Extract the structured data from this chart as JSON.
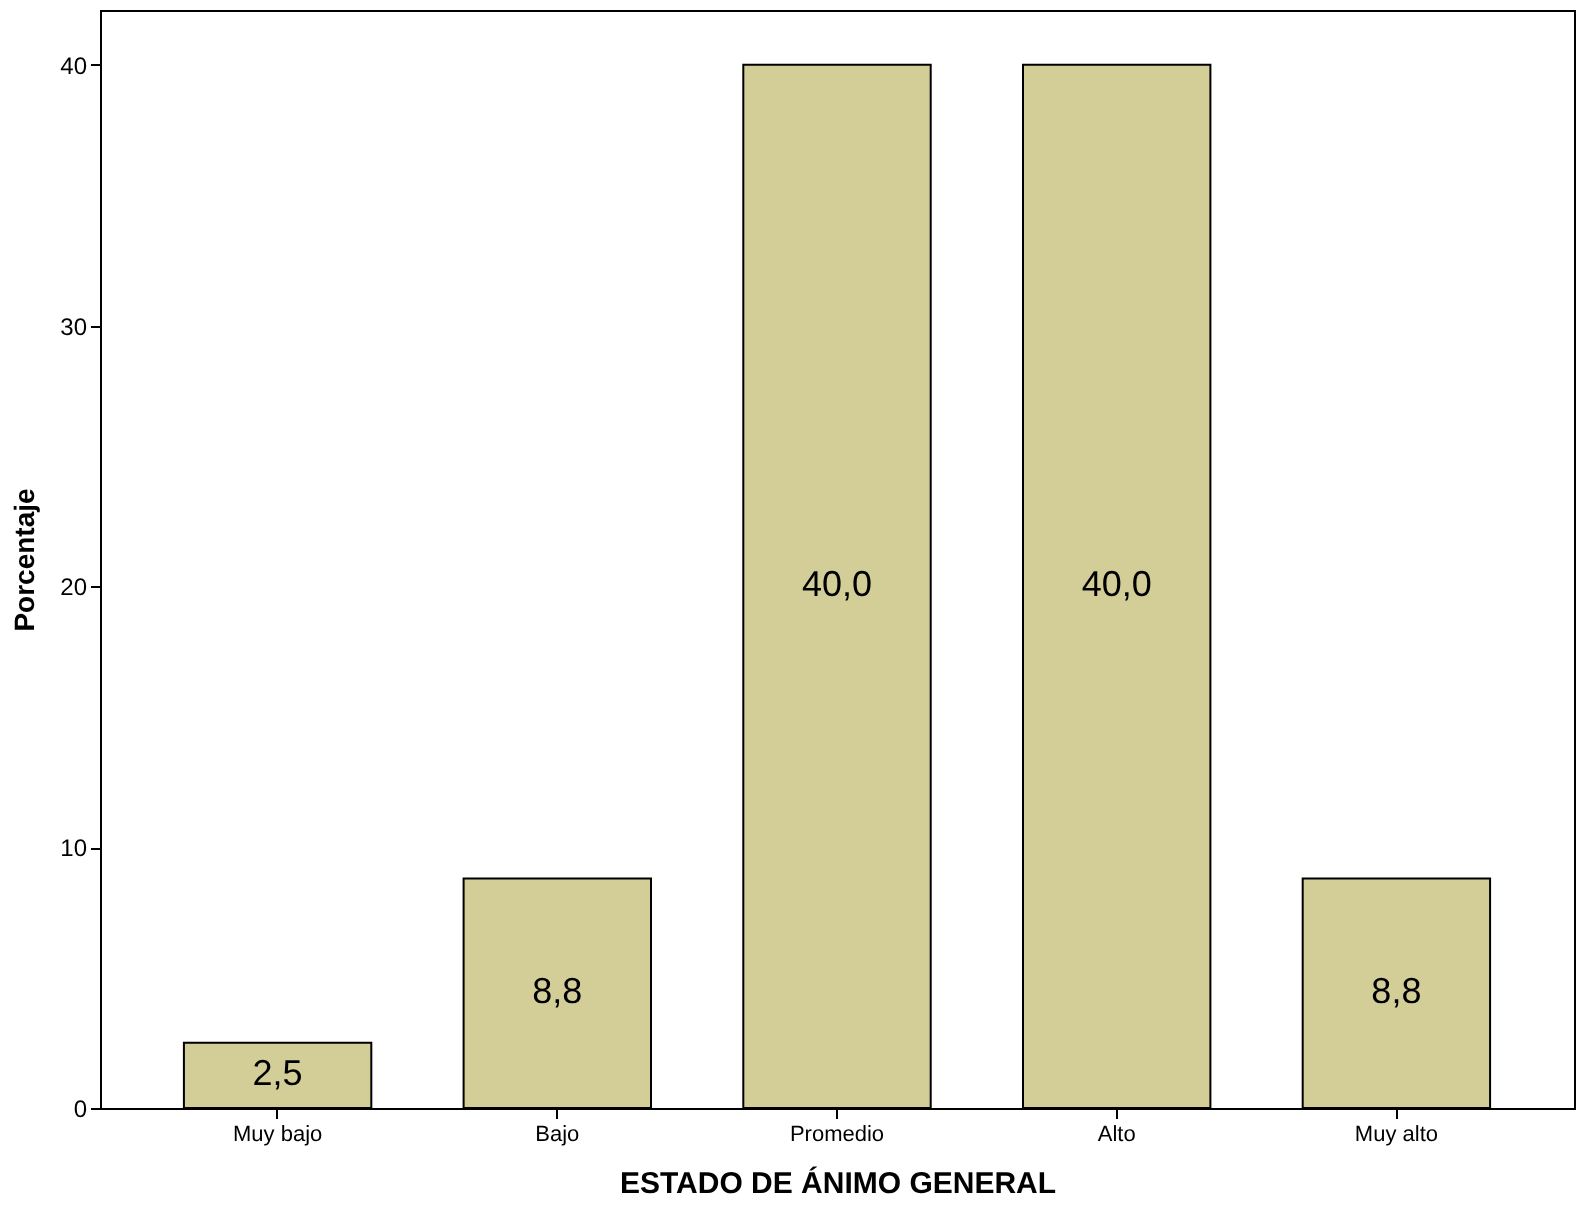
{
  "chart_data": {
    "type": "bar",
    "xlabel": "ESTADO DE ÁNIMO GENERAL",
    "ylabel": "Porcentaje",
    "categories": [
      "Muy bajo",
      "Bajo",
      "Promedio",
      "Alto",
      "Muy alto"
    ],
    "values": [
      2.5,
      8.8,
      40.0,
      40.0,
      8.8
    ],
    "value_labels": [
      "2,5",
      "8,8",
      "40,0",
      "40,0",
      "8,8"
    ],
    "color": "#d3ce98",
    "ylim": [
      0,
      42.1
    ],
    "yticks": [
      0,
      10,
      20,
      30,
      40
    ],
    "grid": false
  }
}
